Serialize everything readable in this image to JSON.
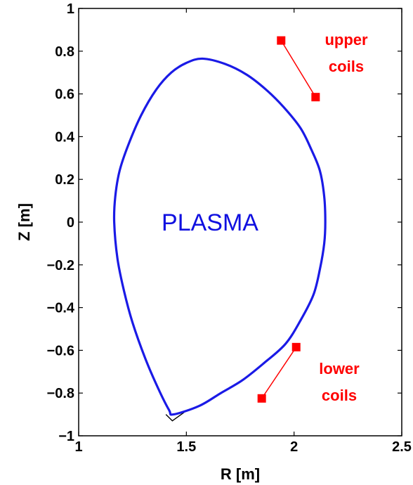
{
  "chart_data": {
    "type": "line",
    "title": "",
    "xlabel": "R [m]",
    "ylabel": "Z [m]",
    "xlim": [
      1,
      2.5
    ],
    "ylim": [
      -1,
      1
    ],
    "x_ticks": [
      "1",
      "1.5",
      "2",
      "2.5"
    ],
    "y_ticks": [
      "−1",
      "−0.8",
      "−0.6",
      "−0.4",
      "−0.2",
      "0",
      "0.2",
      "0.4",
      "0.6",
      "0.8",
      "1"
    ],
    "grid": false,
    "colors": {
      "plasma": "#1a1ae6",
      "coils": "#ff0000",
      "limiter": "#000000"
    },
    "series": [
      {
        "role": "plasma_boundary",
        "points": [
          [
            1.575,
            0.765
          ],
          [
            1.68,
            0.74
          ],
          [
            1.78,
            0.69
          ],
          [
            1.87,
            0.62
          ],
          [
            1.95,
            0.54
          ],
          [
            2.03,
            0.44
          ],
          [
            2.08,
            0.34
          ],
          [
            2.12,
            0.24
          ],
          [
            2.14,
            0.12
          ],
          [
            2.145,
            0.0
          ],
          [
            2.14,
            -0.1
          ],
          [
            2.12,
            -0.22
          ],
          [
            2.09,
            -0.34
          ],
          [
            2.03,
            -0.46
          ],
          [
            1.96,
            -0.57
          ],
          [
            1.86,
            -0.66
          ],
          [
            1.76,
            -0.74
          ],
          [
            1.66,
            -0.8
          ],
          [
            1.56,
            -0.86
          ],
          [
            1.44,
            -0.9
          ],
          [
            1.42,
            -0.88
          ],
          [
            1.37,
            -0.78
          ],
          [
            1.31,
            -0.64
          ],
          [
            1.25,
            -0.47
          ],
          [
            1.21,
            -0.32
          ],
          [
            1.18,
            -0.17
          ],
          [
            1.165,
            0.0
          ],
          [
            1.17,
            0.12
          ],
          [
            1.19,
            0.24
          ],
          [
            1.23,
            0.36
          ],
          [
            1.29,
            0.5
          ],
          [
            1.36,
            0.62
          ],
          [
            1.43,
            0.7
          ],
          [
            1.5,
            0.745
          ],
          [
            1.575,
            0.765
          ]
        ]
      },
      {
        "role": "divertor_leg",
        "points": [
          [
            1.405,
            -0.9
          ],
          [
            1.435,
            -0.93
          ],
          [
            1.49,
            -0.89
          ]
        ]
      }
    ],
    "coils": {
      "upper": [
        [
          1.94,
          0.85
        ],
        [
          2.1,
          0.585
        ]
      ],
      "lower": [
        [
          2.01,
          -0.585
        ],
        [
          1.85,
          -0.825
        ]
      ]
    },
    "annotations": {
      "plasma": "PLASMA",
      "upper_coils": [
        "upper",
        "coils"
      ],
      "lower_coils": [
        "lower",
        "coils"
      ]
    }
  }
}
